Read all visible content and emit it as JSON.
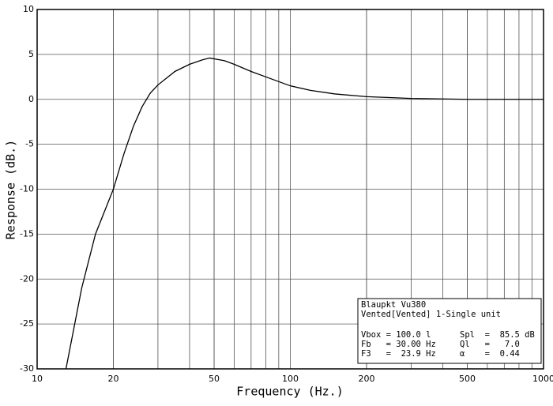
{
  "chart_data": {
    "type": "line",
    "x_label": "Frequency (Hz.)",
    "y_label": "Response (dB.)",
    "xscale": "log",
    "grid": true,
    "xlim": [
      10,
      1000
    ],
    "xticks": [
      10,
      20,
      50,
      100,
      200,
      500,
      1000
    ],
    "ylim": [
      -30,
      10
    ],
    "yticks": [
      10,
      5,
      0,
      -5,
      -10,
      -15,
      -20,
      -25,
      -30
    ],
    "series": [
      {
        "name": "Blaupkt Vu380",
        "color": "#000000",
        "x": [
          13,
          15,
          17,
          20,
          22,
          24,
          26,
          28,
          30,
          35,
          40,
          45,
          48,
          55,
          60,
          70,
          80,
          100,
          120,
          150,
          200,
          300,
          500,
          1000
        ],
        "values": [
          -30,
          -21,
          -15,
          -10,
          -6.1,
          -3,
          -0.8,
          0.7,
          1.6,
          3.1,
          3.9,
          4.4,
          4.6,
          4.3,
          3.9,
          3.1,
          2.5,
          1.5,
          1.0,
          0.6,
          0.3,
          0.1,
          0,
          0
        ]
      }
    ],
    "info_box": {
      "title": "Blaupkt Vu380",
      "subtitle": "Vented[Vented] 1-Single unit",
      "rows": [
        [
          "Vbox = 100.0 l",
          "Spl  =  85.5 dB"
        ],
        [
          "Fb   = 30.00 Hz",
          "Ql   =   7.0"
        ],
        [
          "F3   =  23.9 Hz",
          "α    =  0.44"
        ]
      ]
    }
  }
}
